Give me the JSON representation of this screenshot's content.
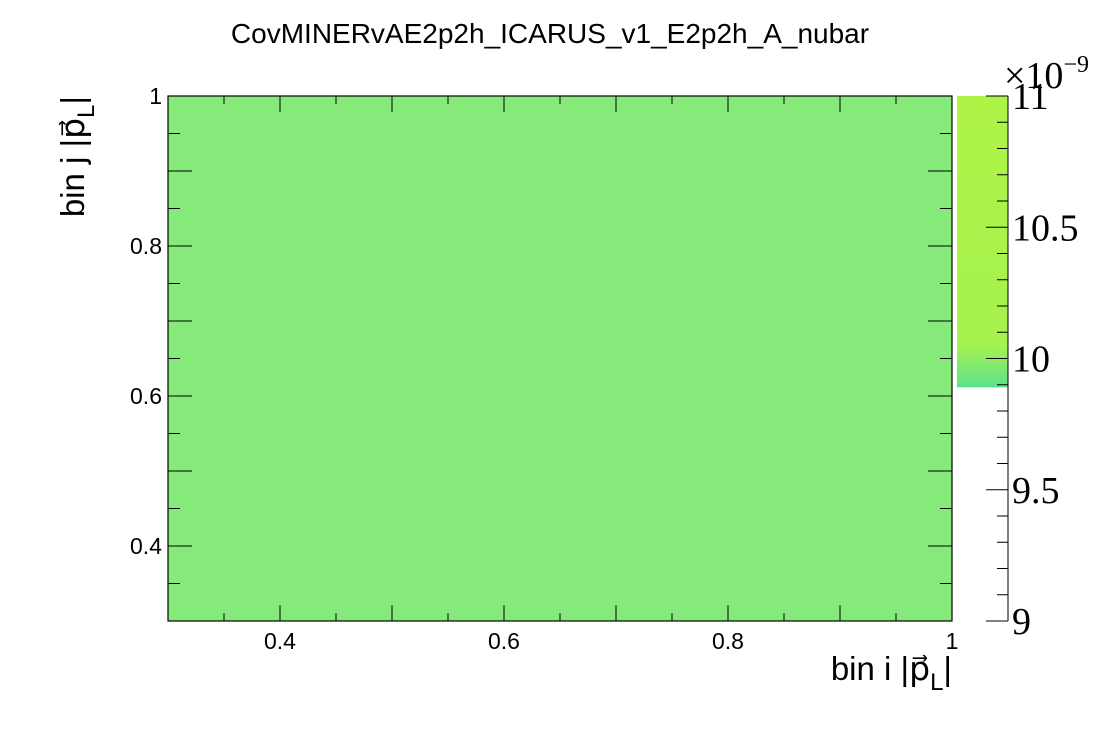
{
  "chart_data": {
    "type": "heatmap",
    "title": "CovMINERvAE2p2h_ICARUS_v1_E2p2h_A_nubar",
    "xlabel": {
      "main": "bin i |",
      "vector": "p",
      "subscript": "L",
      "close": "|"
    },
    "ylabel": {
      "main": "bin j |",
      "vector": "p",
      "subscript": "L",
      "close": "|"
    },
    "xlim": [
      0.3,
      1.0
    ],
    "ylim": [
      0.3,
      1.0
    ],
    "x_ticks": [
      {
        "value": 0.4,
        "label": "0.4"
      },
      {
        "value": 0.6,
        "label": "0.6"
      },
      {
        "value": 0.8,
        "label": "0.8"
      },
      {
        "value": 1.0,
        "label": "1"
      }
    ],
    "y_ticks": [
      {
        "value": 0.4,
        "label": "0.4"
      },
      {
        "value": 0.6,
        "label": "0.6"
      },
      {
        "value": 0.8,
        "label": "0.8"
      },
      {
        "value": 1.0,
        "label": "1"
      }
    ],
    "cells": [
      {
        "x": [
          0.3,
          1.0
        ],
        "y": [
          0.3,
          1.0
        ],
        "value": 1e-08,
        "color": "#86EA7B"
      }
    ],
    "colorbar": {
      "min": 9,
      "max": 11,
      "exponent_label": "×10",
      "exponent_power": "−9",
      "ticks": [
        {
          "value": 9,
          "label": "9"
        },
        {
          "value": 9.5,
          "label": "9.5"
        },
        {
          "value": 10,
          "label": "10"
        },
        {
          "value": 10.5,
          "label": "10.5"
        },
        {
          "value": 11,
          "label": "11"
        }
      ],
      "filled_from": 9.89,
      "gradient": [
        {
          "value": 9.89,
          "color": "#5BE28E"
        },
        {
          "value": 10.05,
          "color": "#A6F250"
        },
        {
          "value": 11,
          "color": "#AEF446"
        }
      ]
    }
  }
}
